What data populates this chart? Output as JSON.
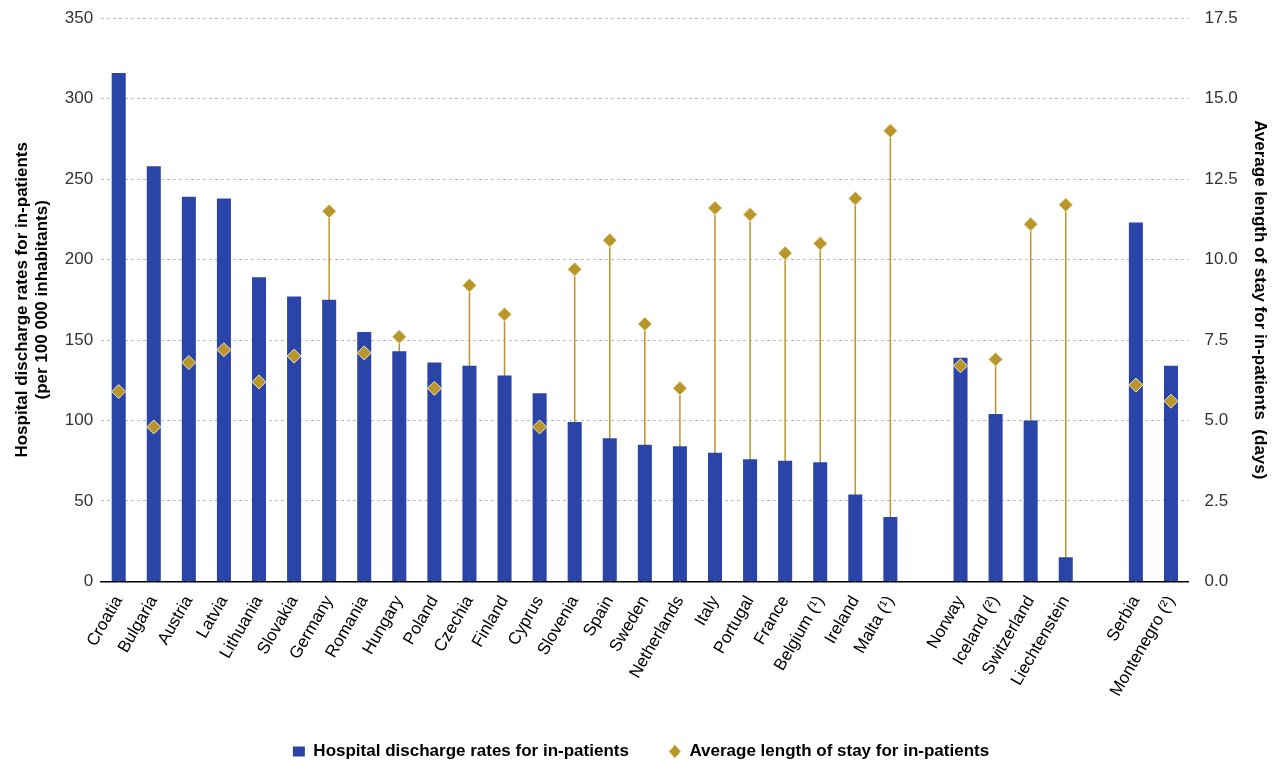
{
  "chart_data": {
    "type": "bar",
    "ylabel": "Hospital discharge rates for in-patients\n(per 100 000 inhabitants)",
    "y2label": "Average length of stay for in-patients  (days)",
    "categories": [
      "Croatia",
      "Bulgaria",
      "Austria",
      "Latvia",
      "Lithuania",
      "Slovakia",
      "Germany",
      "Romania",
      "Hungary",
      "Poland",
      "Czechia",
      "Finland",
      "Cyprus",
      "Slovenia",
      "Spain",
      "Sweden",
      "Netherlands",
      "Italy",
      "Portugal",
      "France",
      "Belgium (¹)",
      "Ireland",
      "Malta (¹)",
      null,
      "Norway",
      "Iceland (²)",
      "Switzerland",
      "Liechtenstein",
      null,
      "Serbia",
      "Montenegro (²)"
    ],
    "series": [
      {
        "name": "Hospital discharge rates for in-patients",
        "color": "#2a44a8",
        "values": [
          316,
          258,
          239,
          238,
          189,
          177,
          175,
          155,
          143,
          136,
          134,
          128,
          117,
          99,
          89,
          85,
          84,
          80,
          76,
          75,
          74,
          54,
          40,
          null,
          139,
          104,
          100,
          15,
          null,
          223,
          134
        ]
      },
      {
        "name": "Average length of stay for in-patients",
        "type": "lollipop",
        "axis": "y2",
        "color": "#b8962a",
        "marker": "diamond",
        "values": [
          5.9,
          4.8,
          6.8,
          7.2,
          6.2,
          7.0,
          11.5,
          7.1,
          7.6,
          6.0,
          9.2,
          8.3,
          4.8,
          9.7,
          10.6,
          8.0,
          6.0,
          11.6,
          11.4,
          10.2,
          10.5,
          11.9,
          14.0,
          null,
          6.7,
          6.9,
          11.1,
          11.7,
          null,
          6.1,
          5.6
        ]
      }
    ],
    "ylim": [
      0,
      350
    ],
    "yticks": [
      0,
      50,
      100,
      150,
      200,
      250,
      300,
      350
    ],
    "y2lim": [
      0,
      17.5
    ],
    "y2ticks": [
      {
        "value": 0,
        "label": "0.0"
      },
      {
        "value": 2.5,
        "label": "2.5"
      },
      {
        "value": 5,
        "label": "5.0"
      },
      {
        "value": 7.5,
        "label": "7.5"
      },
      {
        "value": 10,
        "label": "10.0"
      },
      {
        "value": 12.5,
        "label": "12.5"
      },
      {
        "value": 15,
        "label": "15.0"
      },
      {
        "value": 17.5,
        "label": "17.5"
      }
    ],
    "grid": "y",
    "legend": "bottom"
  }
}
